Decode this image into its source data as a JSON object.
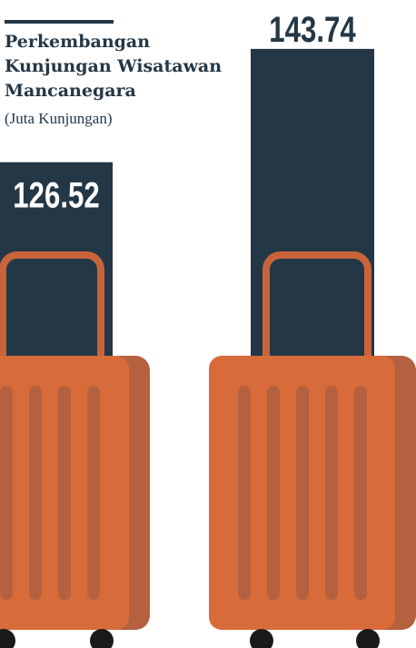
{
  "chart_data": {
    "type": "bar",
    "title": "Perkembangan Kunjungan Wisatawan Mancanegara",
    "subtitle": "(Juta Kunjungan)",
    "values": [
      126.52,
      143.74
    ],
    "color": "#243746"
  }
}
